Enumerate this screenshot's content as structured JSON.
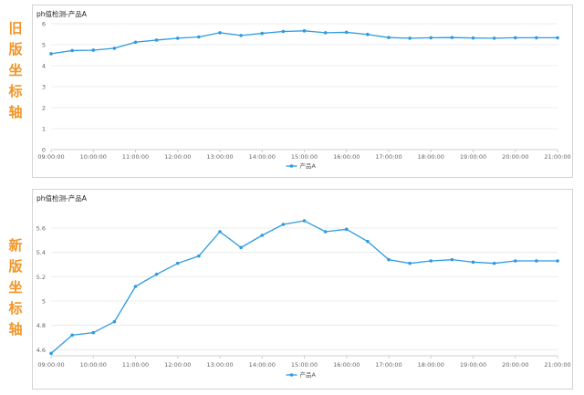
{
  "side_labels": [
    {
      "text": "旧版坐标轴"
    },
    {
      "text": "新版坐标轴"
    }
  ],
  "colors": {
    "series": "#2e9be0",
    "side_label": "#f0962a"
  },
  "chart_data": [
    {
      "type": "line",
      "title": "ph值检测-产品A",
      "xlabel": "",
      "ylabel": "",
      "ylim": [
        0,
        6
      ],
      "yticks": [
        "0",
        "1",
        "2",
        "3",
        "4",
        "5",
        "6"
      ],
      "xticks": [
        "09:00:00",
        "10:00:00",
        "11:00:00",
        "12:00:00",
        "13:00:00",
        "14:00:00",
        "15:00:00",
        "16:00:00",
        "17:00:00",
        "18:00:00",
        "19:00:00",
        "20:00:00",
        "21:00:00"
      ],
      "x": [
        "09:00",
        "09:30",
        "10:00",
        "10:30",
        "11:00",
        "11:30",
        "12:00",
        "12:30",
        "13:00",
        "13:30",
        "14:00",
        "14:30",
        "15:00",
        "15:30",
        "16:00",
        "16:30",
        "17:00",
        "17:30",
        "18:00",
        "18:30",
        "19:00",
        "19:30",
        "20:00",
        "20:30",
        "21:00"
      ],
      "series": [
        {
          "name": "产品A",
          "values": [
            4.57,
            4.72,
            4.74,
            4.83,
            5.12,
            5.22,
            5.31,
            5.37,
            5.57,
            5.44,
            5.54,
            5.63,
            5.66,
            5.57,
            5.59,
            5.49,
            5.34,
            5.31,
            5.33,
            5.34,
            5.32,
            5.31,
            5.33,
            5.33,
            5.33
          ]
        }
      ],
      "grid": true,
      "legend": "bottom-center"
    },
    {
      "type": "line",
      "title": "ph值检测-产品A",
      "xlabel": "",
      "ylabel": "",
      "ylim": [
        4.55,
        5.75
      ],
      "yticks": [
        "4.6",
        "4.8",
        "5",
        "5.2",
        "5.4",
        "5.6"
      ],
      "xticks": [
        "09:00:00",
        "10:00:00",
        "11:00:00",
        "12:00:00",
        "13:00:00",
        "14:00:00",
        "15:00:00",
        "16:00:00",
        "17:00:00",
        "18:00:00",
        "19:00:00",
        "20:00:00",
        "21:00:00"
      ],
      "x": [
        "09:00",
        "09:30",
        "10:00",
        "10:30",
        "11:00",
        "11:30",
        "12:00",
        "12:30",
        "13:00",
        "13:30",
        "14:00",
        "14:30",
        "15:00",
        "15:30",
        "16:00",
        "16:30",
        "17:00",
        "17:30",
        "18:00",
        "18:30",
        "19:00",
        "19:30",
        "20:00",
        "20:30",
        "21:00"
      ],
      "series": [
        {
          "name": "产品A",
          "values": [
            4.57,
            4.72,
            4.74,
            4.83,
            5.12,
            5.22,
            5.31,
            5.37,
            5.57,
            5.44,
            5.54,
            5.63,
            5.66,
            5.57,
            5.59,
            5.49,
            5.34,
            5.31,
            5.33,
            5.34,
            5.32,
            5.31,
            5.33,
            5.33,
            5.33
          ]
        }
      ],
      "grid": true,
      "legend": "bottom-center"
    }
  ]
}
